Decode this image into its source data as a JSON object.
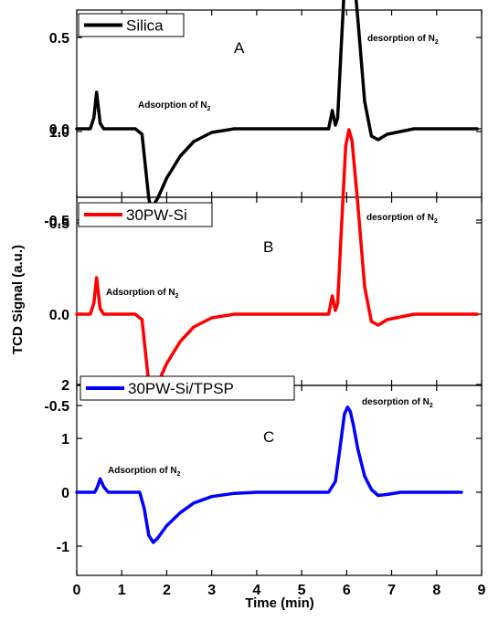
{
  "chart_data": [
    {
      "type": "line",
      "panel_label": "A",
      "xlim": [
        0,
        9
      ],
      "ylim": [
        -0.6,
        1.2
      ],
      "yticks": [
        "-0.5",
        "0.0",
        "0.5",
        "1.0"
      ],
      "series": [
        {
          "name": "Silica",
          "color": "#000000",
          "x": [
            0.0,
            0.3,
            0.38,
            0.44,
            0.52,
            0.6,
            1.0,
            1.3,
            1.45,
            1.6,
            1.65,
            1.8,
            2.0,
            2.3,
            2.6,
            3.0,
            3.5,
            4.0,
            5.0,
            5.6,
            5.68,
            5.75,
            5.8,
            5.88,
            5.98,
            6.05,
            6.12,
            6.25,
            6.4,
            6.55,
            6.7,
            6.9,
            7.1,
            7.5,
            8.0,
            8.9
          ],
          "y": [
            0.0,
            0.0,
            0.06,
            0.2,
            0.03,
            0.0,
            0.0,
            0.0,
            -0.03,
            -0.38,
            -0.44,
            -0.38,
            -0.27,
            -0.15,
            -0.07,
            -0.02,
            0.0,
            0.0,
            0.0,
            0.0,
            0.1,
            0.02,
            0.06,
            0.45,
            0.92,
            1.01,
            0.95,
            0.6,
            0.15,
            -0.04,
            -0.06,
            -0.03,
            -0.02,
            0.0,
            0.0,
            0.0
          ]
        }
      ],
      "annotations": [
        {
          "text": "Adsorption of N",
          "sub": "2"
        },
        {
          "text": "desorption of N",
          "sub": "2"
        }
      ]
    },
    {
      "type": "line",
      "panel_label": "B",
      "xlim": [
        0,
        9
      ],
      "ylim": [
        -0.6,
        1.2
      ],
      "yticks": [
        "-0.5",
        "0.0",
        "0.5",
        "1.0"
      ],
      "series": [
        {
          "name": "30PW-Si",
          "color": "#ff0000",
          "x": [
            0.0,
            0.3,
            0.38,
            0.44,
            0.52,
            0.6,
            1.0,
            1.3,
            1.45,
            1.6,
            1.65,
            1.8,
            2.0,
            2.3,
            2.6,
            3.0,
            3.5,
            4.0,
            5.0,
            5.6,
            5.68,
            5.75,
            5.8,
            5.88,
            5.98,
            6.05,
            6.12,
            6.25,
            6.4,
            6.55,
            6.7,
            6.9,
            7.1,
            7.5,
            8.0,
            8.9
          ],
          "y": [
            0.0,
            0.0,
            0.06,
            0.2,
            0.03,
            0.0,
            0.0,
            0.0,
            -0.03,
            -0.38,
            -0.44,
            -0.38,
            -0.27,
            -0.15,
            -0.07,
            -0.02,
            0.0,
            0.0,
            0.0,
            0.0,
            0.1,
            0.02,
            0.06,
            0.45,
            0.92,
            1.01,
            0.95,
            0.6,
            0.15,
            -0.04,
            -0.06,
            -0.03,
            -0.02,
            0.0,
            0.0,
            0.0
          ]
        }
      ],
      "annotations": [
        {
          "text": "Adsorption of N",
          "sub": "2"
        },
        {
          "text": "desorption of N",
          "sub": "2"
        }
      ]
    },
    {
      "type": "line",
      "panel_label": "C",
      "xlim": [
        0,
        9
      ],
      "ylim": [
        -1.5,
        2
      ],
      "yticks": [
        "-1",
        "0",
        "1",
        "2"
      ],
      "xticks": [
        "0",
        "1",
        "2",
        "3",
        "4",
        "5",
        "6",
        "7",
        "8",
        "9"
      ],
      "xlabel": "Time (min)",
      "series": [
        {
          "name": "30PW-Si/TPSP",
          "color": "#0000ff",
          "x": [
            0.0,
            0.4,
            0.46,
            0.52,
            0.6,
            0.7,
            1.0,
            1.4,
            1.5,
            1.6,
            1.7,
            1.8,
            2.0,
            2.3,
            2.6,
            3.0,
            3.5,
            4.0,
            5.0,
            5.6,
            5.75,
            5.85,
            5.95,
            6.02,
            6.08,
            6.15,
            6.25,
            6.4,
            6.55,
            6.7,
            6.9,
            7.2,
            8.0,
            8.55
          ],
          "y": [
            0.0,
            0.0,
            0.1,
            0.25,
            0.1,
            0.0,
            0.0,
            0.0,
            -0.3,
            -0.8,
            -0.93,
            -0.85,
            -0.62,
            -0.38,
            -0.2,
            -0.08,
            -0.02,
            0.0,
            0.0,
            0.0,
            0.2,
            0.8,
            1.45,
            1.58,
            1.5,
            1.25,
            0.8,
            0.3,
            0.05,
            -0.06,
            -0.04,
            0.0,
            0.0,
            0.0
          ]
        }
      ],
      "annotations": [
        {
          "text": "Adsorption of N",
          "sub": "2"
        },
        {
          "text": "desorption of N",
          "sub": "2"
        }
      ]
    }
  ],
  "ylabel": "TCD Signal (a.u.)"
}
